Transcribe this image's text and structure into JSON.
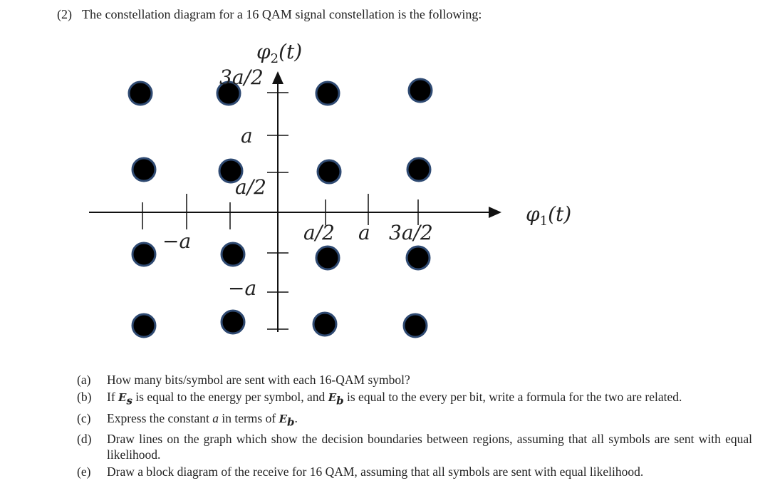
{
  "header": {
    "number": "(2)",
    "text": "The constellation diagram for a 16 QAM signal constellation is the following:"
  },
  "diagram": {
    "y_axis_label": {
      "symbol": "φ",
      "subscript": "2",
      "argument": "(t)"
    },
    "x_axis_label": {
      "symbol": "φ",
      "subscript": "1",
      "argument": "(t)"
    },
    "y_ticks": [
      "3a/2",
      "a",
      "a/2",
      "−a"
    ],
    "x_ticks": [
      "−a",
      "a/2",
      "a",
      "3a/2"
    ]
  },
  "questions": [
    {
      "label": "(a)",
      "runs": [
        "How many bits/symbol are sent with each 16-QAM symbol?"
      ]
    },
    {
      "label": "(b)",
      "runs": [
        "If ",
        "E",
        "s",
        " is equal to the energy per symbol, and ",
        "E",
        "b",
        " is equal to the every per bit, write a formula for the two are related."
      ]
    },
    {
      "label": "(c)",
      "runs": [
        "Express the constant ",
        "a",
        " in terms of ",
        "E",
        "b",
        "."
      ]
    },
    {
      "label": "(d)",
      "runs": [
        "Draw lines on the graph which show the decision boundaries between regions, assuming that all symbols are sent with equal likelihood."
      ]
    },
    {
      "label": "(e)",
      "runs": [
        "Draw a block diagram of the receive for 16 QAM, assuming that all symbols are sent with equal likelihood."
      ]
    }
  ]
}
